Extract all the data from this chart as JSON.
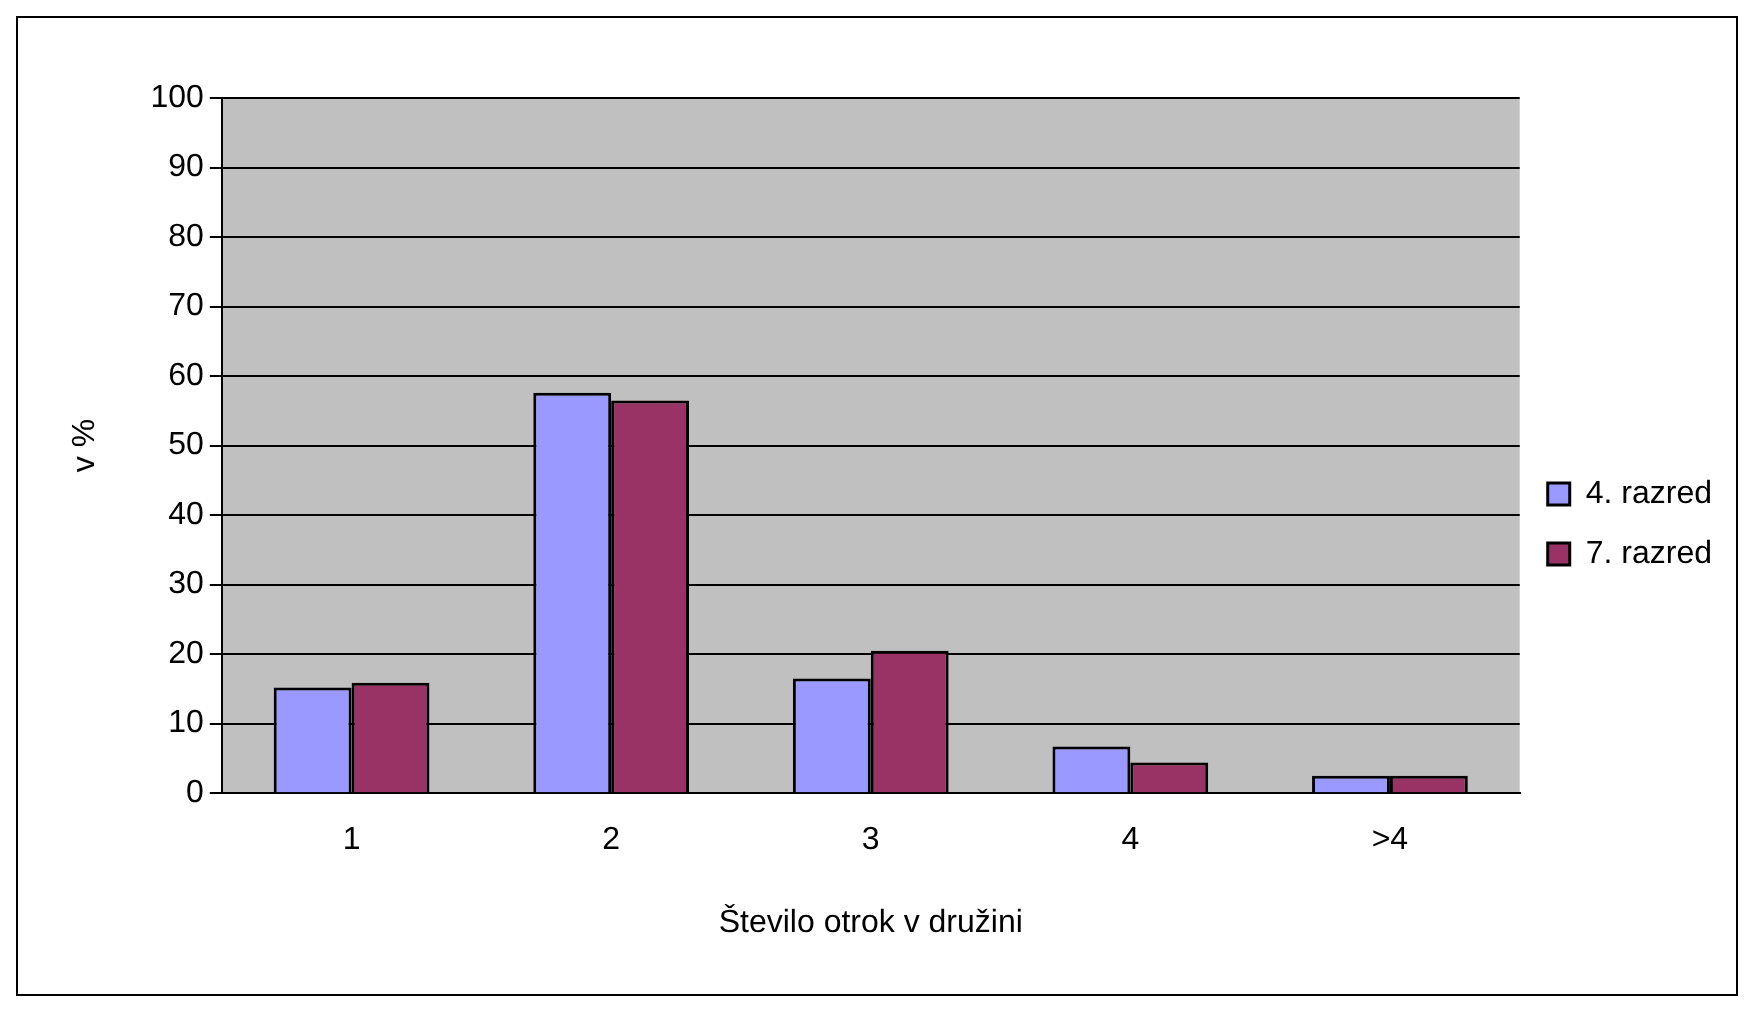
{
  "chart_data": {
    "type": "bar",
    "xlabel": "Število otrok v družini",
    "ylabel": "v %",
    "categories": [
      "1",
      "2",
      "3",
      "4",
      ">4"
    ],
    "series": [
      {
        "name": "4. razred",
        "color": "#9999ff",
        "values": [
          15.2,
          57.6,
          16.5,
          6.7,
          2.5
        ]
      },
      {
        "name": "7. razred",
        "color": "#993366",
        "values": [
          15.9,
          56.5,
          20.5,
          4.4,
          2.5
        ]
      }
    ],
    "ylim": [
      0,
      100
    ],
    "yticks": [
      0,
      10,
      20,
      30,
      40,
      50,
      60,
      70,
      80,
      90,
      100
    ],
    "grid": "y",
    "legend": "right"
  }
}
